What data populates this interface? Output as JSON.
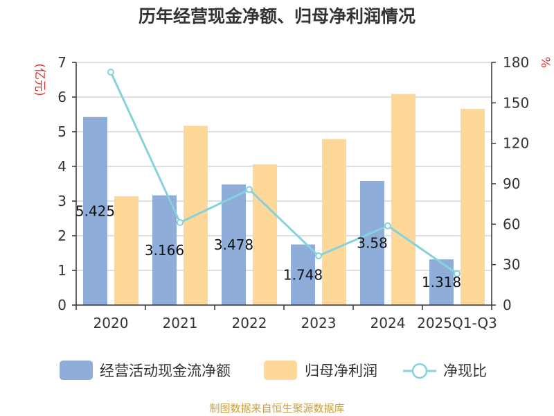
{
  "title": "历年经营现金净额、归母净利润情况",
  "source": "制图数据来自恒生聚源数据库",
  "left_unit": "(亿元)",
  "right_unit": "%",
  "colors": {
    "cashflow": "#8eadd9",
    "netprofit": "#fdd898",
    "ratio": "#86d2da",
    "grid": "#cccccc",
    "axis": "#333333"
  },
  "chart_data": {
    "type": "bar",
    "title": "历年经营现金净额、归母净利润情况",
    "categories": [
      "2020",
      "2021",
      "2022",
      "2023",
      "2024",
      "2025Q1-Q3"
    ],
    "series": [
      {
        "name": "经营活动现金流净额",
        "type": "bar",
        "axis": "left",
        "values": [
          5.425,
          3.166,
          3.478,
          1.748,
          3.58,
          1.318
        ],
        "labels": [
          "5.425",
          "3.166",
          "3.478",
          "1.748",
          "3.58",
          "1.318"
        ]
      },
      {
        "name": "归母净利润",
        "type": "bar",
        "axis": "left",
        "values": [
          3.14,
          5.17,
          4.06,
          4.79,
          6.09,
          5.66
        ]
      },
      {
        "name": "净现比",
        "type": "line",
        "axis": "right",
        "values": [
          172.8,
          61.2,
          85.7,
          36.5,
          58.8,
          23.3
        ]
      }
    ],
    "ylim_left": [
      0,
      7
    ],
    "yticks_left": [
      "0",
      "1",
      "2",
      "3",
      "4",
      "5",
      "6",
      "7"
    ],
    "ylim_right": [
      0,
      180
    ],
    "yticks_right": [
      "0",
      "30",
      "60",
      "90",
      "120",
      "150",
      "180"
    ],
    "grid": true,
    "legend": "bottom"
  }
}
